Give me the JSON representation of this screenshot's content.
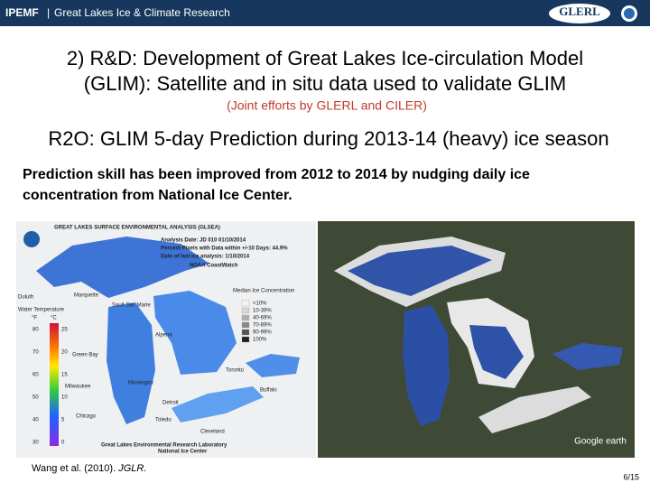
{
  "header": {
    "program": "IPEMF",
    "separator": "|",
    "subtitle": "Great Lakes Ice & Climate Research",
    "logo": "GLERL"
  },
  "title": {
    "line1": "2) R&D: Development of Great Lakes Ice-circulation Model",
    "line2": "(GLIM): Satellite and in situ data used to validate GLIM"
  },
  "note": "(Joint efforts by GLERL and CILER)",
  "section_heading": "R2O: GLIM 5-day Prediction during 2013-14 (heavy) ice season",
  "body": {
    "line1": "Prediction skill has been improved from 2012 to 2014 by nudging daily ice",
    "line2": "concentration from National Ice Center."
  },
  "left_map": {
    "title": "GREAT LAKES SURFACE ENVIRONMENTAL ANALYSIS (GLSEA)",
    "info": [
      "Analysis Date: JD 010 01/10/2014",
      "Percent Pixels with Data within +/-10 Days: 44.9%",
      "Date of last ice analysis: 1/10/2014"
    ],
    "source": "NOAA CoastWatch",
    "ice_legend_title": "Median Ice Concentration",
    "ice_bins": [
      "<10%",
      "10-39%",
      "40-69%",
      "70-89%",
      "90-99%",
      "100%"
    ],
    "temp_title": "Water Temperature",
    "unit_f": "°F",
    "unit_c": "°C",
    "temp_f": [
      "80",
      "70",
      "60",
      "50",
      "40",
      "30"
    ],
    "temp_c": [
      "25",
      "20",
      "15",
      "10",
      "5",
      "0"
    ],
    "cities": [
      "Duluth",
      "Marquette",
      "Sault Ste. Marie",
      "Alpena",
      "Green Bay",
      "Toronto",
      "Muskegon",
      "Milwaukee",
      "Buffalo",
      "Detroit",
      "Toledo",
      "Chicago",
      "Cleveland"
    ],
    "footer": [
      "Great Lakes Environmental Research Laboratory",
      "National Ice Center"
    ]
  },
  "right_map": {
    "watermark": "Google earth"
  },
  "citation": {
    "text": "Wang et al. (2010). ",
    "journal": "JGLR."
  },
  "page_number": "6/15"
}
